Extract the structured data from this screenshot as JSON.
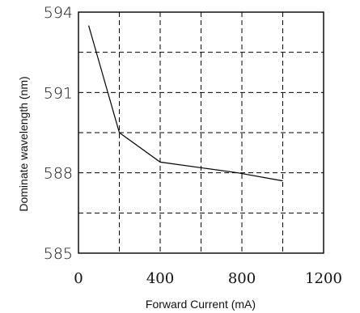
{
  "chart_data": {
    "type": "line",
    "title": "",
    "xlabel": "Forward Current (mA)",
    "ylabel": "Dominate wavelength (nm)",
    "xlim": [
      0,
      1200
    ],
    "ylim": [
      585,
      594
    ],
    "x_ticks": [
      0,
      400,
      800,
      1200
    ],
    "x_tick_labels": [
      "0",
      "400",
      "800",
      "1200"
    ],
    "y_ticks": [
      585,
      588,
      591,
      594
    ],
    "y_tick_labels": [
      "585",
      "588",
      "591",
      "594"
    ],
    "grid": true,
    "grid_style": "dashed",
    "x_grid_step": 200,
    "y_grid_step": 1.5,
    "line_color": "#000000",
    "series": [
      {
        "x": [
          50,
          200,
          400,
          780,
          1000
        ],
        "y": [
          593.5,
          589.5,
          588.4,
          588.0,
          587.7
        ]
      }
    ]
  }
}
